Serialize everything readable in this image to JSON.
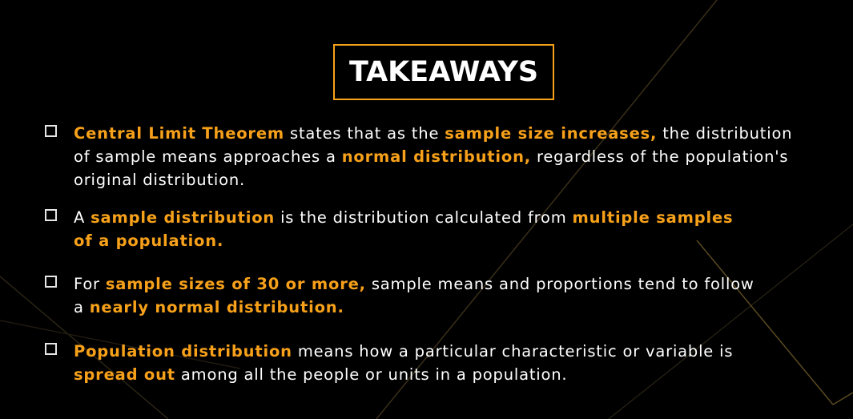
{
  "title": "TAKEAWAYS",
  "colors": {
    "accent": "#f7a11a",
    "background": "#000000",
    "text": "#ffffff"
  },
  "items": [
    {
      "lines": [
        [
          {
            "text": "Central Limit Theorem",
            "hl": true
          },
          {
            "text": " states that as the ",
            "hl": false
          },
          {
            "text": "sample size increases,",
            "hl": true
          },
          {
            "text": " the distribution",
            "hl": false
          }
        ],
        [
          {
            "text": "of sample means approaches a ",
            "hl": false
          },
          {
            "text": "normal distribution,",
            "hl": true
          },
          {
            "text": " regardless of the population's",
            "hl": false
          }
        ],
        [
          {
            "text": "original distribution.",
            "hl": false
          }
        ]
      ]
    },
    {
      "lines": [
        [
          {
            "text": "A ",
            "hl": false
          },
          {
            "text": "sample distribution",
            "hl": true
          },
          {
            "text": " is the distribution calculated from ",
            "hl": false
          },
          {
            "text": "multiple samples",
            "hl": true
          }
        ],
        [
          {
            "text": "of a population.",
            "hl": true
          }
        ]
      ]
    },
    {
      "lines": [
        [
          {
            "text": "For ",
            "hl": false
          },
          {
            "text": "sample sizes of 30 or more,",
            "hl": true
          },
          {
            "text": " sample means and proportions tend to follow",
            "hl": false
          }
        ],
        [
          {
            "text": "a ",
            "hl": false
          },
          {
            "text": "nearly normal distribution.",
            "hl": true
          }
        ]
      ]
    },
    {
      "lines": [
        [
          {
            "text": "Population distribution",
            "hl": true
          },
          {
            "text": " means how a particular characteristic or variable is",
            "hl": false
          }
        ],
        [
          {
            "text": "spread out",
            "hl": true
          },
          {
            "text": " among all the people or units in a population.",
            "hl": false
          }
        ]
      ]
    }
  ]
}
